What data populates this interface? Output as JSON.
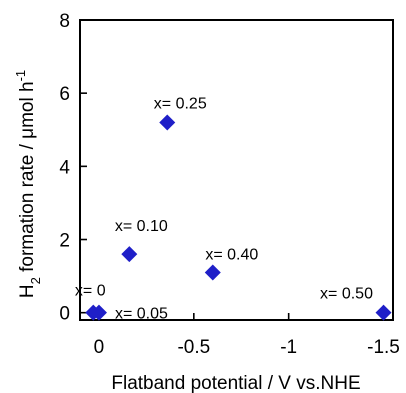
{
  "chart_data": {
    "type": "scatter",
    "xlabel": "Flatband potential / V vs.NHE",
    "ylabel": {
      "h2": "H",
      "sub": "2",
      "rest": " formation rate / μmol h",
      "sup": "-1"
    },
    "xlim": [
      0.1,
      -1.55
    ],
    "ylim": [
      -0.2,
      8
    ],
    "x_ticks": [
      {
        "value": 0,
        "label": "0"
      },
      {
        "value": -0.5,
        "label": "-0.5"
      },
      {
        "value": -1,
        "label": "-1"
      },
      {
        "value": -1.5,
        "label": "-1.5"
      }
    ],
    "y_ticks": [
      {
        "value": 0,
        "label": "0"
      },
      {
        "value": 2,
        "label": "2"
      },
      {
        "value": 4,
        "label": "4"
      },
      {
        "value": 6,
        "label": "6"
      },
      {
        "value": 8,
        "label": "8"
      }
    ],
    "marker_color": "#1f1fc8",
    "points": [
      {
        "label": "x= 0",
        "x": 0.03,
        "y": 0.0
      },
      {
        "label": "x= 0.05",
        "x": 0.0,
        "y": 0.0
      },
      {
        "label": "x= 0.10",
        "x": -0.16,
        "y": 1.6
      },
      {
        "label": "x= 0.25",
        "x": -0.36,
        "y": 5.2
      },
      {
        "label": "x= 0.40",
        "x": -0.6,
        "y": 1.1
      },
      {
        "label": "x= 0.50",
        "x": -1.5,
        "y": 0.0
      }
    ],
    "grid": false,
    "legend": "none"
  }
}
